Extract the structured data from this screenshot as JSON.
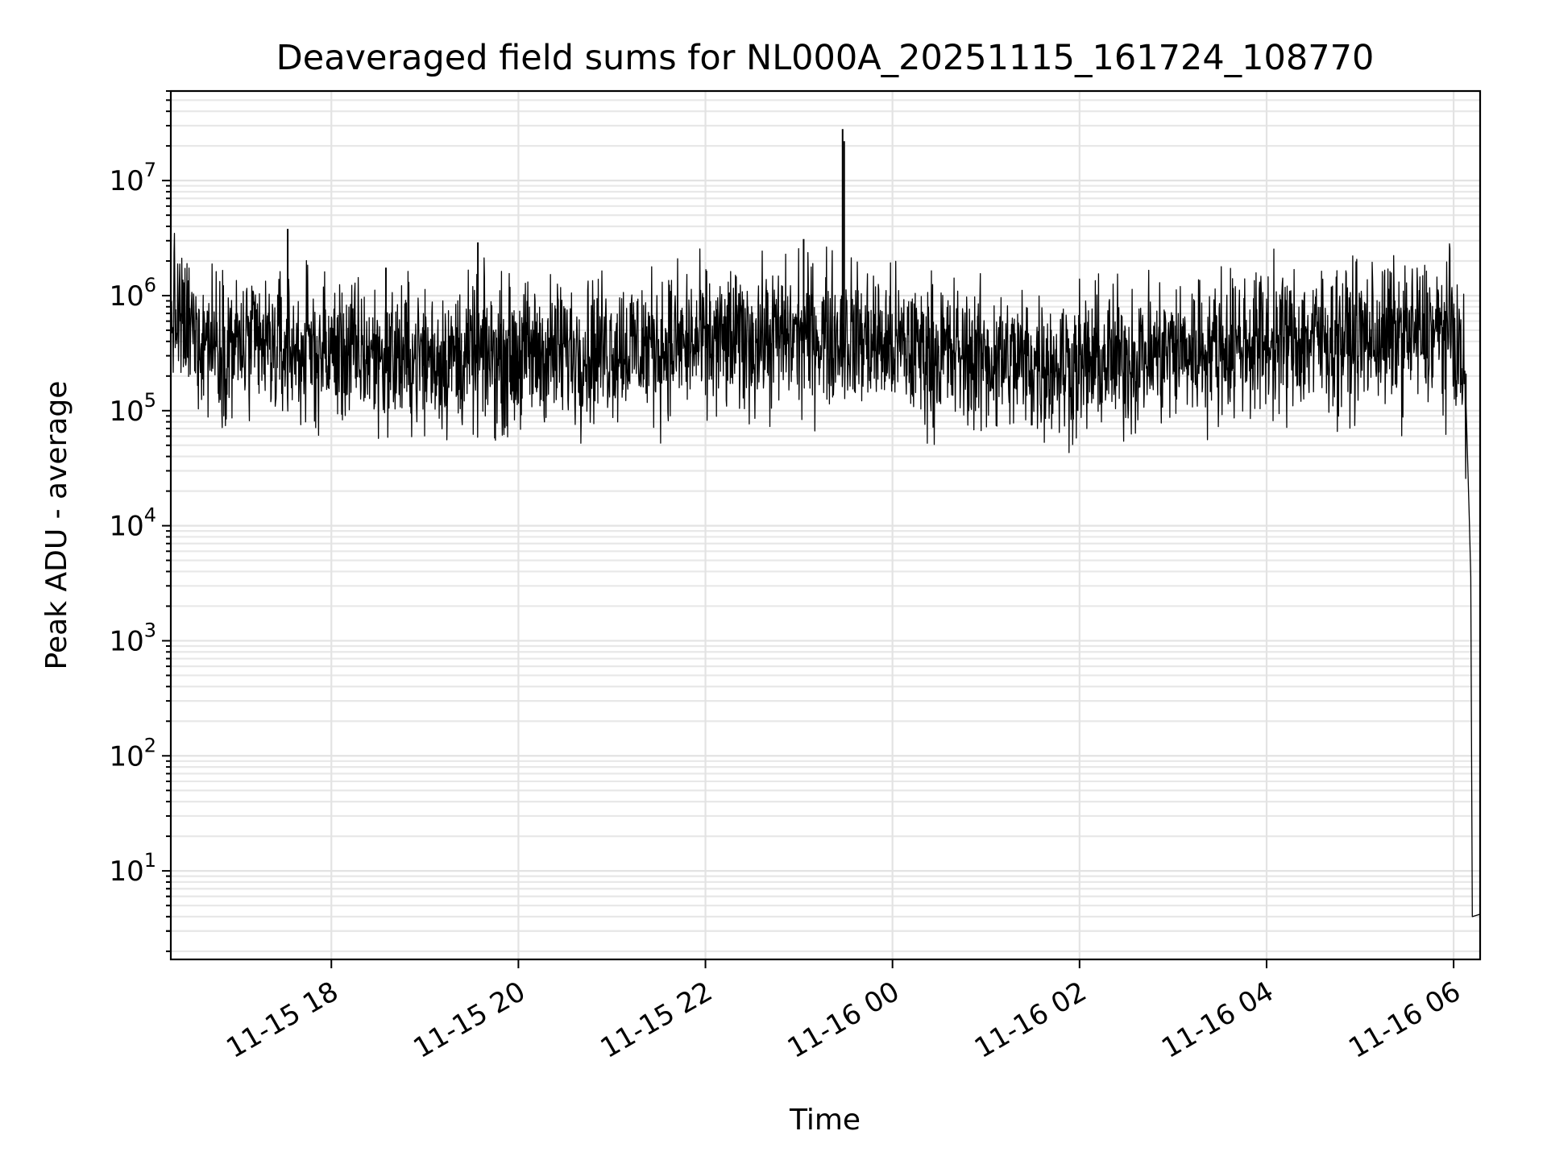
{
  "chart_data": {
    "type": "line",
    "title": "Deaveraged field sums for NL000A_20251115_161724_108770",
    "xlabel": "Time",
    "ylabel": "Peak ADU - average",
    "yscale": "log",
    "ylim": [
      1.7,
      60000000
    ],
    "xlim": [
      "2025-11-15 16:17",
      "2025-11-16 06:17"
    ],
    "grid": true,
    "line_color": "#000000",
    "grid_color": "#e3e3e3",
    "y_ticks": [
      {
        "base": "10",
        "exp": "1",
        "value": 10
      },
      {
        "base": "10",
        "exp": "2",
        "value": 100
      },
      {
        "base": "10",
        "exp": "3",
        "value": 1000
      },
      {
        "base": "10",
        "exp": "4",
        "value": 10000
      },
      {
        "base": "10",
        "exp": "5",
        "value": 100000
      },
      {
        "base": "10",
        "exp": "6",
        "value": 1000000
      },
      {
        "base": "10",
        "exp": "7",
        "value": 10000000
      }
    ],
    "x_ticks": [
      {
        "label": "11-15 18",
        "time": "2025-11-15 18:00"
      },
      {
        "label": "11-15 20",
        "time": "2025-11-15 20:00"
      },
      {
        "label": "11-15 22",
        "time": "2025-11-15 22:00"
      },
      {
        "label": "11-16 00",
        "time": "2025-11-16 00:00"
      },
      {
        "label": "11-16 02",
        "time": "2025-11-16 02:00"
      },
      {
        "label": "11-16 04",
        "time": "2025-11-16 04:00"
      },
      {
        "label": "11-16 06",
        "time": "2025-11-16 06:00"
      }
    ],
    "series": [
      {
        "baseline_points": [
          {
            "t": "2025-11-15 16:17",
            "y": 750000
          },
          {
            "t": "2025-11-15 16:25",
            "y": 520000
          },
          {
            "t": "2025-11-15 17:00",
            "y": 360000
          },
          {
            "t": "2025-11-15 18:00",
            "y": 320000
          },
          {
            "t": "2025-11-15 19:00",
            "y": 290000
          },
          {
            "t": "2025-11-15 20:00",
            "y": 300000
          },
          {
            "t": "2025-11-15 21:00",
            "y": 360000
          },
          {
            "t": "2025-11-15 22:00",
            "y": 380000
          },
          {
            "t": "2025-11-15 23:00",
            "y": 450000
          },
          {
            "t": "2025-11-15 23:30",
            "y": 460000
          },
          {
            "t": "2025-11-16 00:00",
            "y": 360000
          },
          {
            "t": "2025-11-16 01:00",
            "y": 280000
          },
          {
            "t": "2025-11-16 02:00",
            "y": 250000
          },
          {
            "t": "2025-11-16 03:00",
            "y": 330000
          },
          {
            "t": "2025-11-16 04:00",
            "y": 400000
          },
          {
            "t": "2025-11-16 05:00",
            "y": 430000
          },
          {
            "t": "2025-11-16 06:00",
            "y": 480000
          },
          {
            "t": "2025-11-16 06:05",
            "y": 250000
          },
          {
            "t": "2025-11-16 06:08",
            "y": 120000
          }
        ],
        "spikes": [
          {
            "t": "2025-11-15 17:32",
            "y": 3800000
          },
          {
            "t": "2025-11-15 18:35",
            "y": 1750000
          },
          {
            "t": "2025-11-15 19:34",
            "y": 2900000
          },
          {
            "t": "2025-11-15 23:03",
            "y": 3100000
          },
          {
            "t": "2025-11-15 23:28",
            "y": 28000000
          },
          {
            "t": "2025-11-15 23:29",
            "y": 22000000
          }
        ],
        "tail_points": [
          {
            "t": "2025-11-16 06:08",
            "y": 110000
          },
          {
            "t": "2025-11-16 06:10",
            "y": 12000
          },
          {
            "t": "2025-11-16 06:11",
            "y": 3600
          },
          {
            "t": "2025-11-16 06:12",
            "y": 4
          },
          {
            "t": "2025-11-16 06:17",
            "y": 4.2
          }
        ]
      }
    ]
  }
}
